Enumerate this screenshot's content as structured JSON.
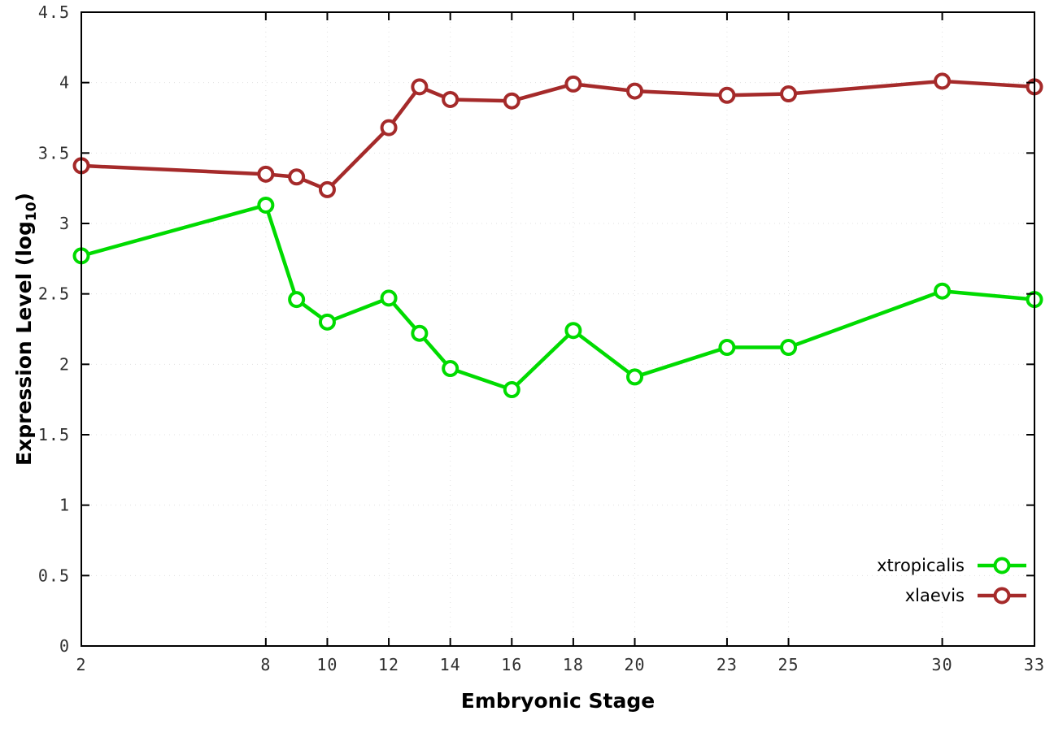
{
  "figure": {
    "background": "#ffffff",
    "border_color": "#000000",
    "tick_label_color": "#303030",
    "grid_color": "#e0e0e0",
    "xlabel": "Embryonic Stage",
    "ylabel": {
      "pre": "Expression Level (log",
      "sub": "10",
      "post": ")"
    }
  },
  "chart_data": {
    "type": "line",
    "title": "",
    "xlabel": "Embryonic Stage",
    "ylabel": "Expression Level (log10)",
    "x": [
      2,
      8,
      9,
      10,
      12,
      13,
      14,
      16,
      18,
      20,
      23,
      25,
      30,
      33
    ],
    "xlim": [
      2,
      33
    ],
    "ylim": [
      0,
      4.5
    ],
    "xticks": [
      2,
      8,
      10,
      12,
      14,
      16,
      18,
      20,
      23,
      25,
      30,
      33
    ],
    "yticks": [
      0,
      0.5,
      1,
      1.5,
      2,
      2.5,
      3,
      3.5,
      4,
      4.5
    ],
    "grid": true,
    "legend_position": "bottom-right",
    "series": [
      {
        "name": "xtropicalis",
        "color": "#00db00",
        "values": [
          2.77,
          3.13,
          2.46,
          2.3,
          2.47,
          2.22,
          1.97,
          1.82,
          2.24,
          1.91,
          2.12,
          2.12,
          2.52,
          2.46
        ]
      },
      {
        "name": "xlaevis",
        "color": "#a52a2a",
        "values": [
          3.41,
          3.35,
          3.33,
          3.24,
          3.68,
          3.97,
          3.88,
          3.87,
          3.99,
          3.94,
          3.91,
          3.92,
          4.01,
          3.97
        ]
      }
    ]
  }
}
